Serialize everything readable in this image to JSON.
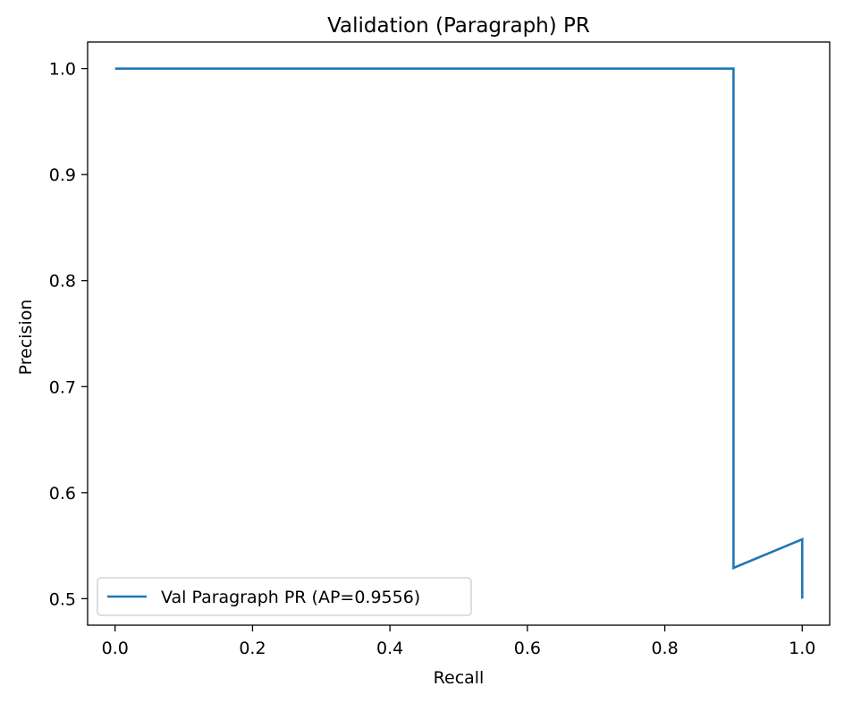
{
  "chart_data": {
    "type": "line",
    "title": "Validation (Paragraph) PR",
    "xlabel": "Recall",
    "ylabel": "Precision",
    "xlim": [
      -0.04,
      1.04
    ],
    "ylim": [
      0.475,
      1.025
    ],
    "xticks": [
      0.0,
      0.2,
      0.4,
      0.6,
      0.8,
      1.0
    ],
    "xtick_labels": [
      "0.0",
      "0.2",
      "0.4",
      "0.6",
      "0.8",
      "1.0"
    ],
    "yticks": [
      0.5,
      0.6,
      0.7,
      0.8,
      0.9,
      1.0
    ],
    "ytick_labels": [
      "0.5",
      "0.6",
      "0.7",
      "0.8",
      "0.9",
      "1.0"
    ],
    "grid": false,
    "legend_position": "lower-left",
    "series": [
      {
        "name": "Val Paragraph PR (AP=0.9556)",
        "color": "#1f77b4",
        "x": [
          0.0,
          0.9,
          0.9,
          1.0,
          1.0
        ],
        "y": [
          1.0,
          1.0,
          0.529,
          0.556,
          0.5
        ]
      }
    ]
  }
}
